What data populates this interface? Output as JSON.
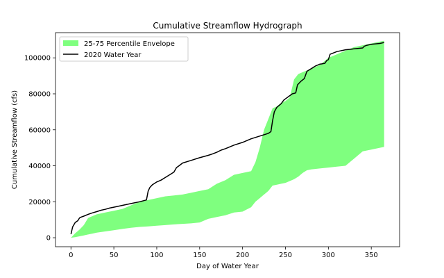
{
  "chart_data": {
    "type": "area",
    "title": "Cumulative Streamflow Hydrograph",
    "xlabel": "Day of Water Year",
    "ylabel": "Cumulative Streamflow (cfs)",
    "xlim": [
      -18,
      383
    ],
    "ylim": [
      -5000,
      114000
    ],
    "x_ticks": [
      0,
      50,
      100,
      150,
      200,
      250,
      300,
      350
    ],
    "y_ticks": [
      0,
      20000,
      40000,
      60000,
      80000,
      100000
    ],
    "grid": false,
    "legend_position": "top-left",
    "series": [
      {
        "name": "25-75 Percentile Envelope",
        "kind": "band",
        "color": "#7fff7f",
        "x": [
          0,
          5,
          10,
          15,
          20,
          25,
          30,
          40,
          50,
          60,
          70,
          80,
          90,
          100,
          110,
          120,
          130,
          140,
          150,
          160,
          170,
          180,
          190,
          200,
          210,
          215,
          220,
          225,
          230,
          235,
          240,
          245,
          250,
          255,
          260,
          265,
          270,
          275,
          280,
          290,
          300,
          310,
          320,
          330,
          340,
          350,
          360,
          365
        ],
        "lower": [
          0,
          300,
          800,
          1300,
          1800,
          2300,
          2800,
          3500,
          4200,
          4900,
          5500,
          6000,
          6300,
          6700,
          7000,
          7400,
          7700,
          8000,
          8500,
          10500,
          11500,
          12500,
          14000,
          14500,
          17000,
          20000,
          22000,
          24000,
          26000,
          29000,
          29500,
          30000,
          30500,
          31500,
          32500,
          34000,
          36000,
          37500,
          38000,
          38500,
          39000,
          39500,
          40000,
          44000,
          48000,
          49000,
          50000,
          50500
        ],
        "upper": [
          0,
          2500,
          4500,
          7000,
          11000,
          12000,
          13000,
          14000,
          15000,
          16000,
          18000,
          20000,
          21000,
          22000,
          23000,
          23500,
          24000,
          25000,
          26000,
          27000,
          30000,
          32000,
          35000,
          36000,
          37000,
          42000,
          50000,
          60000,
          66000,
          72000,
          73000,
          75000,
          76000,
          78000,
          88000,
          91000,
          92000,
          93000,
          94000,
          96000,
          100000,
          102000,
          104000,
          106000,
          107000,
          108000,
          109000,
          109500
        ]
      },
      {
        "name": "2020 Water Year",
        "kind": "line",
        "color": "#000000",
        "x": [
          0,
          2,
          5,
          8,
          10,
          12,
          15,
          20,
          25,
          30,
          35,
          40,
          45,
          50,
          60,
          70,
          80,
          88,
          90,
          92,
          95,
          100,
          105,
          110,
          115,
          120,
          123,
          126,
          130,
          140,
          150,
          160,
          165,
          170,
          175,
          180,
          190,
          200,
          210,
          220,
          230,
          233,
          235,
          237,
          240,
          245,
          248,
          250,
          255,
          258,
          262,
          264,
          268,
          272,
          275,
          280,
          285,
          290,
          292,
          296,
          298,
          300,
          302,
          310,
          320,
          330,
          340,
          342,
          345,
          350,
          360,
          365
        ],
        "y": [
          2000,
          6000,
          8500,
          9500,
          11000,
          11500,
          12000,
          13000,
          13800,
          14500,
          15300,
          15800,
          16500,
          17000,
          18000,
          19000,
          20000,
          21000,
          26000,
          28000,
          29500,
          31000,
          32000,
          33500,
          35000,
          36500,
          39000,
          40000,
          41500,
          43000,
          44500,
          45800,
          46600,
          47500,
          48700,
          49500,
          51500,
          53000,
          55000,
          56500,
          58000,
          59000,
          65000,
          70000,
          72500,
          74500,
          76500,
          77200,
          79000,
          80000,
          80500,
          85000,
          87000,
          88500,
          92500,
          94000,
          95500,
          96500,
          96600,
          97000,
          98500,
          99000,
          102000,
          103500,
          104500,
          105000,
          105500,
          106500,
          107000,
          107500,
          108000,
          108500
        ]
      }
    ]
  }
}
